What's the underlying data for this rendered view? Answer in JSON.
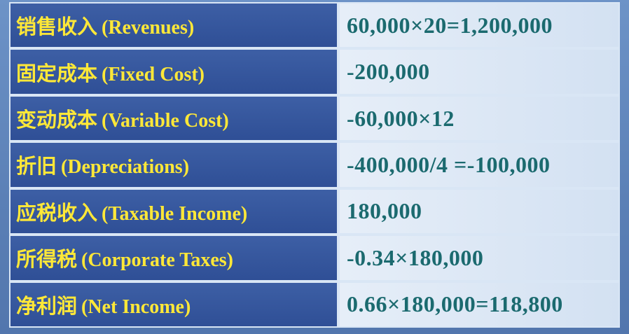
{
  "rows": [
    {
      "cn": "销售收入",
      "en": "(Revenues)",
      "value": "60,000×20=1,200,000"
    },
    {
      "cn": "固定成本",
      "en": "(Fixed Cost)",
      "value": "-200,000"
    },
    {
      "cn": "变动成本",
      "en": "(Variable Cost)",
      "value": "-60,000×12"
    },
    {
      "cn": "折旧",
      "en": "(Depreciations)",
      "value": "-400,000/4 =-100,000"
    },
    {
      "cn": "应税收入",
      "en": "(Taxable Income)",
      "value": "180,000"
    },
    {
      "cn": "所得税",
      "en": "(Corporate Taxes)",
      "value": "-0.34×180,000"
    },
    {
      "cn": "净利润",
      "en": "(Net Income)",
      "value": "0.66×180,000=118,800"
    }
  ],
  "colors": {
    "label_text": "#ffe838",
    "label_bg": "#2f4f96",
    "value_text": "#1b6a6f",
    "value_bg": "#dde8f5"
  }
}
